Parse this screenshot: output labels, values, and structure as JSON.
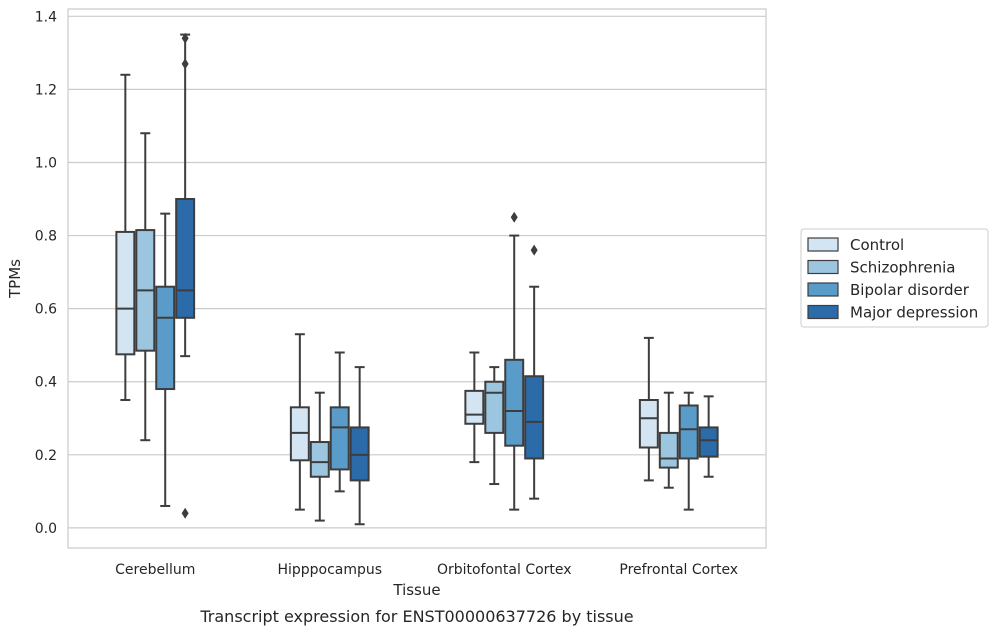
{
  "chart_data": {
    "type": "box",
    "xlabel": "Tissue",
    "ylabel": "TPMs",
    "caption": "Transcript expression for ENST00000637726 by tissue",
    "ylim": [
      -0.055,
      1.42
    ],
    "yticks": [
      0.0,
      0.2,
      0.4,
      0.6,
      0.8,
      1.0,
      1.2,
      1.4
    ],
    "ytick_labels": [
      "0.0",
      "0.2",
      "0.4",
      "0.6",
      "0.8",
      "1.0",
      "1.2",
      "1.4"
    ],
    "grid": "horizontal",
    "legend_position": "right",
    "categories": [
      "Cerebellum",
      "Hipppocampus",
      "Orbitofontal Cortex",
      "Prefrontal Cortex"
    ],
    "series": [
      {
        "name": "Control",
        "color": "#d3e4f3",
        "boxes": [
          {
            "whisker_low": 0.35,
            "q1": 0.475,
            "median": 0.6,
            "q3": 0.81,
            "whisker_high": 1.24,
            "outliers": []
          },
          {
            "whisker_low": 0.05,
            "q1": 0.185,
            "median": 0.26,
            "q3": 0.33,
            "whisker_high": 0.53,
            "outliers": []
          },
          {
            "whisker_low": 0.18,
            "q1": 0.285,
            "median": 0.31,
            "q3": 0.375,
            "whisker_high": 0.48,
            "outliers": []
          },
          {
            "whisker_low": 0.13,
            "q1": 0.22,
            "median": 0.3,
            "q3": 0.35,
            "whisker_high": 0.52,
            "outliers": []
          }
        ]
      },
      {
        "name": "Schizophrenia",
        "color": "#9cc5e0",
        "boxes": [
          {
            "whisker_low": 0.24,
            "q1": 0.485,
            "median": 0.65,
            "q3": 0.815,
            "whisker_high": 1.08,
            "outliers": []
          },
          {
            "whisker_low": 0.02,
            "q1": 0.14,
            "median": 0.18,
            "q3": 0.235,
            "whisker_high": 0.37,
            "outliers": []
          },
          {
            "whisker_low": 0.12,
            "q1": 0.26,
            "median": 0.37,
            "q3": 0.4,
            "whisker_high": 0.44,
            "outliers": []
          },
          {
            "whisker_low": 0.11,
            "q1": 0.165,
            "median": 0.19,
            "q3": 0.26,
            "whisker_high": 0.37,
            "outliers": []
          }
        ]
      },
      {
        "name": "Bipolar disorder",
        "color": "#5a9cc9",
        "boxes": [
          {
            "whisker_low": 0.06,
            "q1": 0.38,
            "median": 0.575,
            "q3": 0.66,
            "whisker_high": 0.86,
            "outliers": []
          },
          {
            "whisker_low": 0.1,
            "q1": 0.16,
            "median": 0.275,
            "q3": 0.33,
            "whisker_high": 0.48,
            "outliers": []
          },
          {
            "whisker_low": 0.05,
            "q1": 0.225,
            "median": 0.32,
            "q3": 0.46,
            "whisker_high": 0.8,
            "outliers": [
              0.85
            ]
          },
          {
            "whisker_low": 0.05,
            "q1": 0.19,
            "median": 0.27,
            "q3": 0.335,
            "whisker_high": 0.37,
            "outliers": []
          }
        ]
      },
      {
        "name": "Major depression",
        "color": "#2b6ba9",
        "boxes": [
          {
            "whisker_low": 0.47,
            "q1": 0.575,
            "median": 0.65,
            "q3": 0.9,
            "whisker_high": 1.35,
            "outliers": [
              1.34,
              1.27,
              0.04
            ]
          },
          {
            "whisker_low": 0.01,
            "q1": 0.13,
            "median": 0.2,
            "q3": 0.275,
            "whisker_high": 0.44,
            "outliers": []
          },
          {
            "whisker_low": 0.08,
            "q1": 0.19,
            "median": 0.29,
            "q3": 0.415,
            "whisker_high": 0.66,
            "outliers": [
              0.76
            ]
          },
          {
            "whisker_low": 0.14,
            "q1": 0.195,
            "median": 0.24,
            "q3": 0.275,
            "whisker_high": 0.36,
            "outliers": []
          }
        ]
      }
    ]
  }
}
